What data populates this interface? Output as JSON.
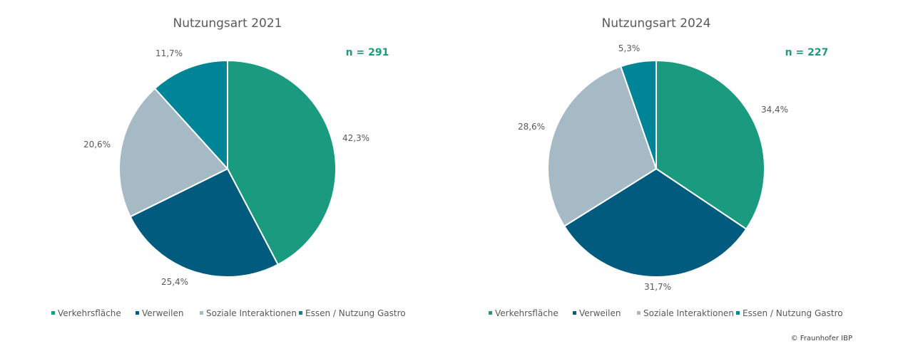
{
  "chart_data": [
    {
      "type": "pie",
      "title": "Nutzungsart 2021",
      "n_label": "n = 291",
      "categories": [
        "Verkehrsfläche",
        "Verweilen",
        "Soziale Interaktionen",
        "Essen / Nutzung Gastro"
      ],
      "values": [
        42.3,
        25.4,
        20.6,
        11.7
      ],
      "labels": [
        "42,3%",
        "25,4%",
        "20,6%",
        "11,7%"
      ],
      "legend": "bottom"
    },
    {
      "type": "pie",
      "title": "Nutzungsart 2024",
      "n_label": "n = 227",
      "categories": [
        "Verkehrsfläche",
        "Verweilen",
        "Soziale Interaktionen",
        "Essen / Nutzung Gastro"
      ],
      "values": [
        34.4,
        31.7,
        28.6,
        5.3
      ],
      "labels": [
        "34,4%",
        "31,7%",
        "28,6%",
        "5,3%"
      ],
      "legend": "bottom"
    }
  ],
  "colors": {
    "Verkehrsfläche": "#1a9b7f",
    "Verweilen": "#005b7f",
    "Soziale Interaktionen": "#a6bac6",
    "Essen / Nutzung Gastro": "#008598"
  },
  "copyright": "© Fraunhofer IBP"
}
